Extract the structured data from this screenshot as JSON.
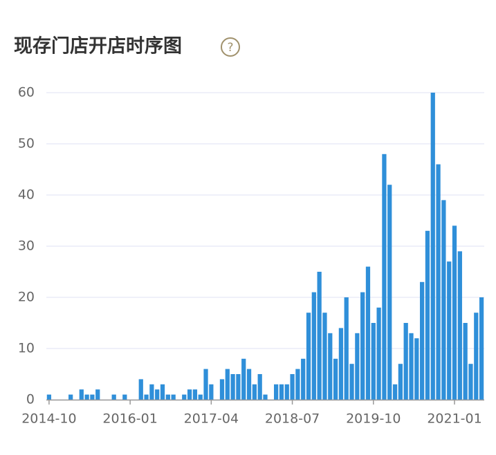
{
  "chart_data": {
    "type": "bar",
    "title": "现存门店开店时序图",
    "help_icon": "?",
    "categories": [
      "2014-10",
      null,
      null,
      null,
      null,
      null,
      null,
      null,
      null,
      null,
      null,
      null,
      null,
      null,
      null,
      "2016-01",
      null,
      null,
      null,
      null,
      null,
      null,
      null,
      null,
      null,
      null,
      null,
      null,
      null,
      null,
      "2017-04",
      null,
      null,
      null,
      null,
      null,
      null,
      null,
      null,
      null,
      null,
      null,
      null,
      null,
      null,
      "2018-07",
      null,
      null,
      null,
      null,
      null,
      null,
      null,
      null,
      null,
      null,
      null,
      null,
      null,
      null,
      "2019-10",
      null,
      null,
      null,
      null,
      null,
      null,
      null,
      null,
      null,
      null,
      null,
      null,
      null,
      null,
      "2021-01",
      null,
      null,
      null,
      null,
      null
    ],
    "values": [
      1,
      0,
      0,
      0,
      1,
      0,
      2,
      1,
      1,
      2,
      0,
      0,
      1,
      0,
      1,
      0,
      0,
      4,
      1,
      3,
      2,
      3,
      1,
      1,
      0,
      1,
      2,
      2,
      1,
      6,
      3,
      0,
      4,
      6,
      5,
      5,
      8,
      6,
      3,
      5,
      1,
      0,
      3,
      3,
      3,
      5,
      6,
      8,
      17,
      21,
      25,
      17,
      13,
      8,
      14,
      20,
      7,
      13,
      21,
      26,
      15,
      18,
      48,
      42,
      3,
      7,
      15,
      13,
      12,
      23,
      33,
      60,
      46,
      39,
      27,
      34,
      29,
      15,
      7,
      17,
      20
    ],
    "color": "#2f8fd9",
    "ylim": [
      0,
      60
    ],
    "yticks": [
      0,
      10,
      20,
      30,
      40,
      50,
      60
    ],
    "grid": true
  }
}
